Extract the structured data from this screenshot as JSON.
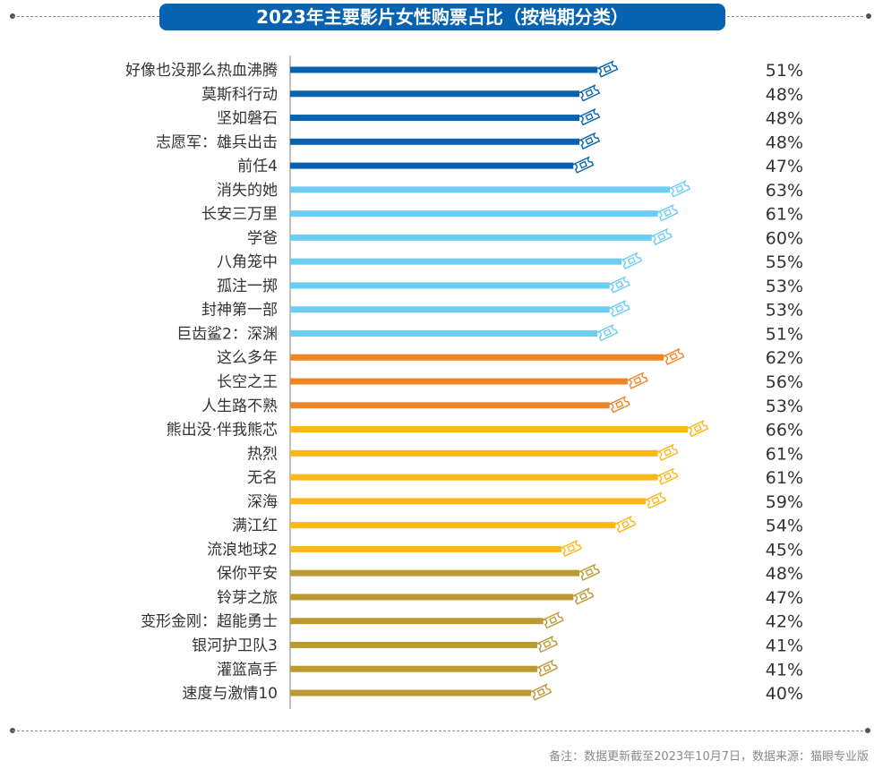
{
  "title": "2023年主要影片女性购票占比（按档期分类）",
  "footnote": "备注：数据更新截至2023年10月7日，数据来源：猫眼专业版",
  "colors": {
    "title_bg": "#0563b1",
    "group1": "#0563b1",
    "group2": "#6ccdf2",
    "group3": "#f08526",
    "group4": "#fbb717",
    "group5": "#bb9a34"
  },
  "chart_data": {
    "type": "bar",
    "orientation": "horizontal",
    "title": "2023年主要影片女性购票占比（按档期分类）",
    "xlabel": "",
    "ylabel": "",
    "xlim": [
      0,
      100
    ],
    "value_suffix": "%",
    "grid": false,
    "legend": "none",
    "marker_icon": "ticket-icon",
    "categories": [
      "好像也没那么热血沸腾",
      "莫斯科行动",
      "坚如磐石",
      "志愿军：雄兵出击",
      "前任4",
      "消失的她",
      "长安三万里",
      "学爸",
      "八角笼中",
      "孤注一掷",
      "封神第一部",
      "巨齿鲨2：深渊",
      "这么多年",
      "长空之王",
      "人生路不熟",
      "熊出没·伴我熊芯",
      "热烈",
      "无名",
      "深海",
      "满江红",
      "流浪地球2",
      "保你平安",
      "铃芽之旅",
      "变形金刚：超能勇士",
      "银河护卫队3",
      "灌篮高手",
      "速度与激情10"
    ],
    "values": [
      51,
      48,
      48,
      48,
      47,
      63,
      61,
      60,
      55,
      53,
      53,
      51,
      62,
      56,
      53,
      66,
      61,
      61,
      59,
      54,
      45,
      48,
      47,
      42,
      41,
      41,
      40
    ],
    "value_labels": [
      "51%",
      "48%",
      "48%",
      "48%",
      "47%",
      "63%",
      "61%",
      "60%",
      "55%",
      "53%",
      "53%",
      "51%",
      "62%",
      "56%",
      "53%",
      "66%",
      "61%",
      "61%",
      "59%",
      "54%",
      "45%",
      "48%",
      "47%",
      "42%",
      "41%",
      "41%",
      "40%"
    ],
    "groups": [
      "group1",
      "group1",
      "group1",
      "group1",
      "group1",
      "group2",
      "group2",
      "group2",
      "group2",
      "group2",
      "group2",
      "group2",
      "group3",
      "group3",
      "group3",
      "group4",
      "group4",
      "group4",
      "group4",
      "group4",
      "group4",
      "group5",
      "group5",
      "group5",
      "group5",
      "group5",
      "group5"
    ]
  }
}
